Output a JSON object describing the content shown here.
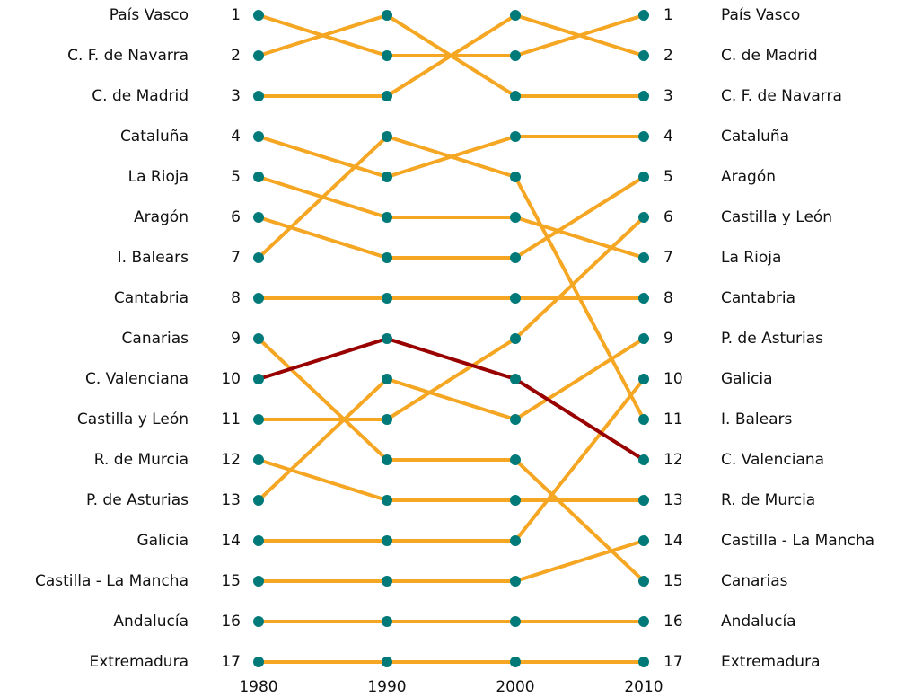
{
  "chart_data": {
    "type": "bump",
    "x": [
      1980,
      1990,
      2000,
      2010
    ],
    "xlim": [
      1980,
      2010
    ],
    "ylim": [
      17,
      1
    ],
    "yticks": [
      1,
      2,
      3,
      4,
      5,
      6,
      7,
      8,
      9,
      10,
      11,
      12,
      13,
      14,
      15,
      16,
      17
    ],
    "marker_color": "#007a78",
    "series": [
      {
        "name": "País Vasco",
        "color": "#f5a623",
        "values": [
          1,
          2,
          2,
          1
        ]
      },
      {
        "name": "C. F. de Navarra",
        "color": "#f5a623",
        "values": [
          2,
          1,
          3,
          3
        ]
      },
      {
        "name": "C. de Madrid",
        "color": "#f5a623",
        "values": [
          3,
          3,
          1,
          2
        ]
      },
      {
        "name": "Cataluña",
        "color": "#f5a623",
        "values": [
          4,
          5,
          4,
          4
        ]
      },
      {
        "name": "La Rioja",
        "color": "#f5a623",
        "values": [
          5,
          6,
          6,
          7
        ]
      },
      {
        "name": "Aragón",
        "color": "#f5a623",
        "values": [
          6,
          7,
          7,
          5
        ]
      },
      {
        "name": "I. Balears",
        "color": "#f5a623",
        "values": [
          7,
          4,
          5,
          11
        ]
      },
      {
        "name": "Cantabria",
        "color": "#f5a623",
        "values": [
          8,
          8,
          8,
          8
        ]
      },
      {
        "name": "Canarias",
        "color": "#f5a623",
        "values": [
          9,
          12,
          12,
          15
        ]
      },
      {
        "name": "C. Valenciana",
        "color": "#990000",
        "values": [
          10,
          9,
          10,
          12
        ]
      },
      {
        "name": "Castilla y León",
        "color": "#f5a623",
        "values": [
          11,
          11,
          9,
          6
        ]
      },
      {
        "name": "R. de Murcia",
        "color": "#f5a623",
        "values": [
          12,
          13,
          13,
          13
        ]
      },
      {
        "name": "P. de Asturias",
        "color": "#f5a623",
        "values": [
          13,
          10,
          11,
          9
        ]
      },
      {
        "name": "Galicia",
        "color": "#f5a623",
        "values": [
          14,
          14,
          14,
          10
        ]
      },
      {
        "name": "Castilla - La Mancha",
        "color": "#f5a623",
        "values": [
          15,
          15,
          15,
          14
        ]
      },
      {
        "name": "Andalucía",
        "color": "#f5a623",
        "values": [
          16,
          16,
          16,
          16
        ]
      },
      {
        "name": "Extremadura",
        "color": "#f5a623",
        "values": [
          17,
          17,
          17,
          17
        ]
      }
    ]
  }
}
